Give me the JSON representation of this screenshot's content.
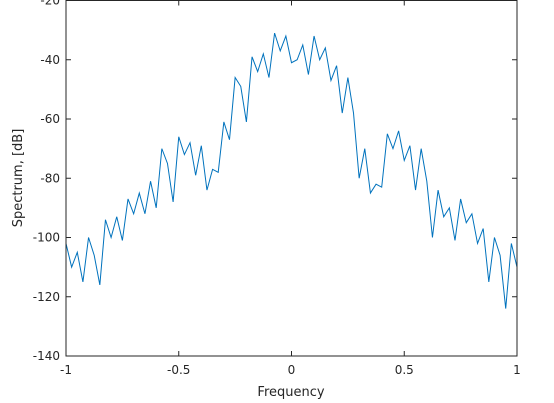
{
  "chart_data": {
    "type": "line",
    "x_label": "Frequency",
    "y_label": "Spectrum,  [dB]",
    "x": [
      -1,
      -0.975,
      -0.95,
      -0.925,
      -0.9,
      -0.875,
      -0.85,
      -0.825,
      -0.8,
      -0.775,
      -0.75,
      -0.725,
      -0.7,
      -0.675,
      -0.65,
      -0.625,
      -0.6,
      -0.575,
      -0.55,
      -0.525,
      -0.5,
      -0.475,
      -0.45,
      -0.425,
      -0.4,
      -0.375,
      -0.35,
      -0.325,
      -0.3,
      -0.275,
      -0.25,
      -0.225,
      -0.2,
      -0.175,
      -0.15,
      -0.125,
      -0.1,
      -0.075,
      -0.05,
      -0.025,
      0,
      0.025,
      0.05,
      0.075,
      0.1,
      0.125,
      0.15,
      0.175,
      0.2,
      0.225,
      0.25,
      0.275,
      0.3,
      0.325,
      0.35,
      0.375,
      0.4,
      0.425,
      0.45,
      0.475,
      0.5,
      0.525,
      0.55,
      0.575,
      0.6,
      0.625,
      0.65,
      0.675,
      0.7,
      0.725,
      0.75,
      0.775,
      0.8,
      0.825,
      0.85,
      0.875,
      0.9,
      0.925,
      0.95,
      0.975,
      1
    ],
    "series": [
      {
        "color": "#0072BD",
        "values": [
          -102,
          -110,
          -105,
          -115,
          -100,
          -106,
          -116,
          -94,
          -100,
          -93,
          -101,
          -87,
          -92,
          -85,
          -92,
          -81,
          -90,
          -70,
          -75,
          -88,
          -66,
          -72,
          -68,
          -79,
          -69,
          -84,
          -77,
          -78,
          -61,
          -67,
          -46,
          -49,
          -61,
          -39,
          -44,
          -38,
          -46,
          -31,
          -37,
          -32,
          -41,
          -40,
          -35,
          -45,
          -32,
          -40,
          -36,
          -47,
          -42,
          -58,
          -46,
          -58,
          -80,
          -70,
          -85,
          -82,
          -83,
          -65,
          -70,
          -64,
          -74,
          -69,
          -84,
          -70,
          -81,
          -100,
          -84,
          -93,
          -90,
          -101,
          -87,
          -95,
          -92,
          -102,
          -97,
          -115,
          -100,
          -106,
          -124,
          -102,
          -110
        ]
      }
    ],
    "xlim": [
      -1,
      1
    ],
    "xticks": [
      -1,
      -0.5,
      0,
      0.5,
      1
    ],
    "ylim": [
      -140,
      -20
    ],
    "yticks": [
      -140,
      -120,
      -100,
      -80,
      -60,
      -40,
      -20
    ]
  }
}
